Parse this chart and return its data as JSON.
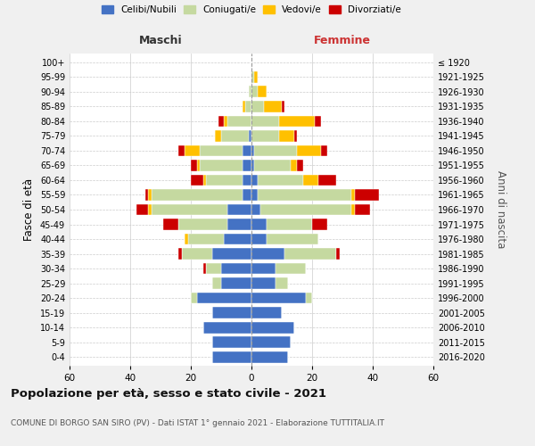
{
  "age_groups": [
    "0-4",
    "5-9",
    "10-14",
    "15-19",
    "20-24",
    "25-29",
    "30-34",
    "35-39",
    "40-44",
    "45-49",
    "50-54",
    "55-59",
    "60-64",
    "65-69",
    "70-74",
    "75-79",
    "80-84",
    "85-89",
    "90-94",
    "95-99",
    "100+"
  ],
  "birth_years": [
    "2016-2020",
    "2011-2015",
    "2006-2010",
    "2001-2005",
    "1996-2000",
    "1991-1995",
    "1986-1990",
    "1981-1985",
    "1976-1980",
    "1971-1975",
    "1966-1970",
    "1961-1965",
    "1956-1960",
    "1951-1955",
    "1946-1950",
    "1941-1945",
    "1936-1940",
    "1931-1935",
    "1926-1930",
    "1921-1925",
    "≤ 1920"
  ],
  "males": {
    "celibi": [
      13,
      13,
      16,
      13,
      18,
      10,
      10,
      13,
      9,
      8,
      8,
      3,
      3,
      3,
      3,
      1,
      0,
      0,
      0,
      0,
      0
    ],
    "coniugati": [
      0,
      0,
      0,
      0,
      2,
      3,
      5,
      10,
      12,
      16,
      25,
      30,
      12,
      14,
      14,
      9,
      8,
      2,
      1,
      0,
      0
    ],
    "vedovi": [
      0,
      0,
      0,
      0,
      0,
      0,
      0,
      0,
      1,
      0,
      1,
      1,
      1,
      1,
      5,
      2,
      1,
      1,
      0,
      0,
      0
    ],
    "divorziati": [
      0,
      0,
      0,
      0,
      0,
      0,
      1,
      1,
      0,
      5,
      4,
      1,
      4,
      2,
      2,
      0,
      2,
      0,
      0,
      0,
      0
    ]
  },
  "females": {
    "nubili": [
      12,
      13,
      14,
      10,
      18,
      8,
      8,
      11,
      5,
      5,
      3,
      2,
      2,
      1,
      1,
      0,
      0,
      0,
      0,
      0,
      0
    ],
    "coniugate": [
      0,
      0,
      0,
      0,
      2,
      4,
      10,
      17,
      17,
      15,
      30,
      31,
      15,
      12,
      14,
      9,
      9,
      4,
      2,
      1,
      0
    ],
    "vedove": [
      0,
      0,
      0,
      0,
      0,
      0,
      0,
      0,
      0,
      0,
      1,
      1,
      5,
      2,
      8,
      5,
      12,
      6,
      3,
      1,
      0
    ],
    "divorziate": [
      0,
      0,
      0,
      0,
      0,
      0,
      0,
      1,
      0,
      5,
      5,
      8,
      6,
      2,
      2,
      1,
      2,
      1,
      0,
      0,
      0
    ]
  },
  "colors": {
    "celibi": "#4472c4",
    "coniugati": "#c5d9a0",
    "vedovi": "#ffc000",
    "divorziati": "#cc0000"
  },
  "xlim": 60,
  "title": "Popolazione per età, sesso e stato civile - 2021",
  "subtitle": "COMUNE DI BORGO SAN SIRO (PV) - Dati ISTAT 1° gennaio 2021 - Elaborazione TUTTITALIA.IT",
  "ylabel_left": "Fasce di età",
  "ylabel_right": "Anni di nascita",
  "legend_labels": [
    "Celibi/Nubili",
    "Coniugati/e",
    "Vedovi/e",
    "Divorziati/e"
  ],
  "maschi_label": "Maschi",
  "femmine_label": "Femmine",
  "bg_color": "#f0f0f0",
  "plot_bg_color": "#ffffff"
}
